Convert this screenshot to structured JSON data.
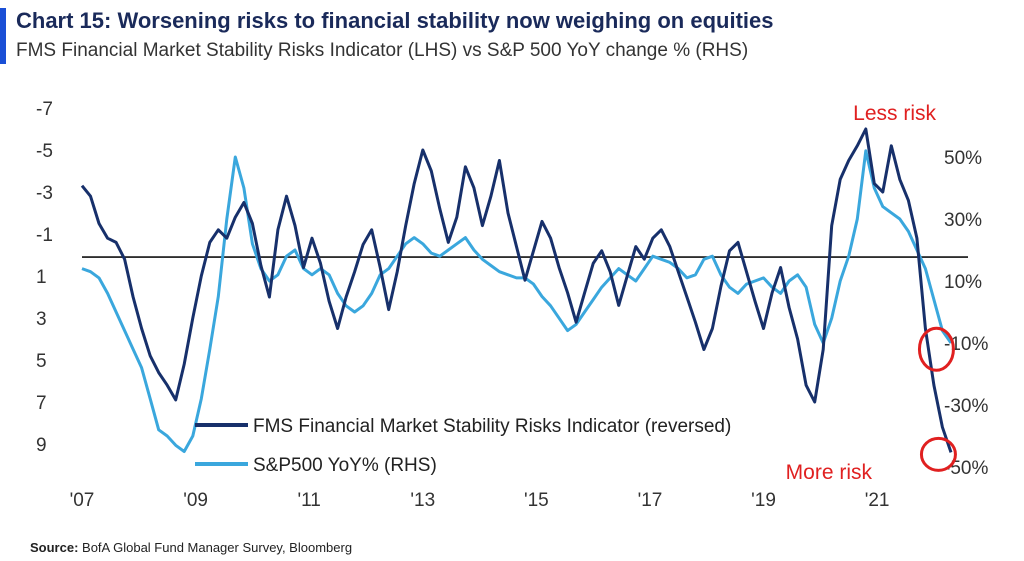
{
  "chart_data": {
    "type": "line",
    "title": "Chart 15: Worsening risks to financial stability now weighing on equities",
    "subtitle": "FMS Financial Market Stability Risks Indicator (LHS) vs S&P 500 YoY change % (RHS)",
    "source_label": "Source:",
    "source_text": "BofA Global Fund Manager Survey, Bloomberg",
    "x_ticks": [
      "'07",
      "'09",
      "'11",
      "'13",
      "'15",
      "'17",
      "'19",
      "'21"
    ],
    "x_tick_years": [
      2007,
      2009,
      2011,
      2013,
      2015,
      2017,
      2019,
      2021
    ],
    "xlim": [
      2007,
      2022.6
    ],
    "left_axis": {
      "ylim": [
        -7,
        10
      ],
      "reversed": true,
      "ticks": [
        -7,
        -5,
        -3,
        -1,
        1,
        3,
        5,
        7,
        9
      ],
      "tick_labels": [
        "-7",
        "-5",
        "-3",
        "-1",
        "1",
        "3",
        "5",
        "7",
        "9"
      ]
    },
    "right_axis": {
      "ylim": [
        -53,
        70
      ],
      "ticks": [
        50,
        30,
        10,
        -10,
        -30,
        -50
      ],
      "tick_labels": [
        "50%",
        "30%",
        "10%",
        "-10%",
        "-30%",
        "-50%"
      ]
    },
    "reference_line": {
      "axis": "left",
      "value": 0.1
    },
    "legend_position": "bottom-left",
    "annotations": [
      {
        "text": "Less risk",
        "color": "#e02020"
      },
      {
        "text": "More risk",
        "color": "#e02020"
      }
    ],
    "highlight_circles": [
      {
        "x": 2022.15,
        "y_right": -12,
        "axis": "right"
      },
      {
        "x": 2022.15,
        "y_left": 9.4,
        "axis": "left"
      }
    ],
    "series": [
      {
        "name": "FMS Financial Market Stability Risks Indicator (reversed)",
        "axis": "left",
        "color": "#17306b",
        "x": [
          2007.0,
          2007.15,
          2007.3,
          2007.45,
          2007.6,
          2007.75,
          2007.9,
          2008.05,
          2008.2,
          2008.35,
          2008.5,
          2008.65,
          2008.8,
          2008.95,
          2009.1,
          2009.25,
          2009.4,
          2009.55,
          2009.7,
          2009.85,
          2010.0,
          2010.15,
          2010.3,
          2010.45,
          2010.6,
          2010.75,
          2010.9,
          2011.05,
          2011.2,
          2011.35,
          2011.5,
          2011.65,
          2011.8,
          2011.95,
          2012.1,
          2012.25,
          2012.4,
          2012.55,
          2012.7,
          2012.85,
          2013.0,
          2013.15,
          2013.3,
          2013.45,
          2013.6,
          2013.75,
          2013.9,
          2014.05,
          2014.2,
          2014.35,
          2014.5,
          2014.65,
          2014.8,
          2014.95,
          2015.1,
          2015.25,
          2015.4,
          2015.55,
          2015.7,
          2015.85,
          2016.0,
          2016.15,
          2016.3,
          2016.45,
          2016.6,
          2016.75,
          2016.9,
          2017.05,
          2017.2,
          2017.35,
          2017.5,
          2017.65,
          2017.8,
          2017.95,
          2018.1,
          2018.25,
          2018.4,
          2018.55,
          2018.7,
          2018.85,
          2019.0,
          2019.15,
          2019.3,
          2019.45,
          2019.6,
          2019.75,
          2019.9,
          2020.05,
          2020.2,
          2020.35,
          2020.5,
          2020.65,
          2020.8,
          2020.95,
          2021.1,
          2021.25,
          2021.4,
          2021.55,
          2021.7,
          2021.85,
          2022.0,
          2022.15,
          2022.3
        ],
        "y": [
          -3.3,
          -2.8,
          -1.5,
          -0.8,
          -0.6,
          0.2,
          2.0,
          3.5,
          4.8,
          5.6,
          6.2,
          6.9,
          5.2,
          3.0,
          1.0,
          -0.6,
          -1.2,
          -0.8,
          -1.8,
          -2.5,
          -1.5,
          0.5,
          2.0,
          -1.2,
          -2.8,
          -1.4,
          0.6,
          -0.8,
          0.4,
          2.2,
          3.5,
          2.0,
          0.8,
          -0.5,
          -1.2,
          0.6,
          2.6,
          0.8,
          -1.4,
          -3.4,
          -5.0,
          -4.0,
          -2.2,
          -0.6,
          -1.8,
          -4.2,
          -3.2,
          -1.4,
          -2.8,
          -4.5,
          -2.0,
          -0.4,
          1.2,
          -0.2,
          -1.6,
          -0.8,
          0.6,
          1.8,
          3.2,
          1.8,
          0.4,
          -0.2,
          0.8,
          2.4,
          1.0,
          -0.4,
          0.2,
          -0.8,
          -1.2,
          -0.4,
          0.8,
          2.0,
          3.2,
          4.5,
          3.5,
          1.5,
          -0.2,
          -0.6,
          0.8,
          2.2,
          3.5,
          1.8,
          0.6,
          2.5,
          4.0,
          6.2,
          7.0,
          4.5,
          -1.4,
          -3.6,
          -4.5,
          -5.2,
          -6.0,
          -3.4,
          -3.0,
          -5.2,
          -3.6,
          -2.6,
          -0.8,
          3.5,
          6.2,
          8.2,
          9.4
        ]
      },
      {
        "name": "S&P500 YoY% (RHS)",
        "axis": "right",
        "color": "#3aa7dd",
        "x": [
          2007.0,
          2007.15,
          2007.3,
          2007.45,
          2007.6,
          2007.75,
          2007.9,
          2008.05,
          2008.2,
          2008.35,
          2008.5,
          2008.65,
          2008.8,
          2008.95,
          2009.1,
          2009.25,
          2009.4,
          2009.55,
          2009.7,
          2009.85,
          2010.0,
          2010.15,
          2010.3,
          2010.45,
          2010.6,
          2010.75,
          2010.9,
          2011.05,
          2011.2,
          2011.35,
          2011.5,
          2011.65,
          2011.8,
          2011.95,
          2012.1,
          2012.25,
          2012.4,
          2012.55,
          2012.7,
          2012.85,
          2013.0,
          2013.15,
          2013.3,
          2013.45,
          2013.6,
          2013.75,
          2013.9,
          2014.05,
          2014.2,
          2014.35,
          2014.5,
          2014.65,
          2014.8,
          2014.95,
          2015.1,
          2015.25,
          2015.4,
          2015.55,
          2015.7,
          2015.85,
          2016.0,
          2016.15,
          2016.3,
          2016.45,
          2016.6,
          2016.75,
          2016.9,
          2017.05,
          2017.2,
          2017.35,
          2017.5,
          2017.65,
          2017.8,
          2017.95,
          2018.1,
          2018.25,
          2018.4,
          2018.55,
          2018.7,
          2018.85,
          2019.0,
          2019.15,
          2019.3,
          2019.45,
          2019.6,
          2019.75,
          2019.9,
          2020.05,
          2020.2,
          2020.35,
          2020.5,
          2020.65,
          2020.8,
          2020.95,
          2021.1,
          2021.25,
          2021.4,
          2021.55,
          2021.7,
          2021.85,
          2022.0,
          2022.15,
          2022.3
        ],
        "y": [
          14,
          13,
          11,
          6,
          0,
          -6,
          -12,
          -18,
          -28,
          -38,
          -40,
          -43,
          -45,
          -40,
          -28,
          -12,
          5,
          30,
          50,
          40,
          22,
          14,
          10,
          12,
          18,
          20,
          14,
          12,
          14,
          12,
          6,
          2,
          0,
          2,
          6,
          12,
          14,
          18,
          22,
          24,
          22,
          19,
          18,
          20,
          22,
          24,
          20,
          17,
          15,
          13,
          12,
          11,
          11,
          9,
          5,
          2,
          -2,
          -6,
          -4,
          0,
          4,
          8,
          11,
          14,
          12,
          10,
          14,
          18,
          17,
          16,
          14,
          11,
          12,
          17,
          18,
          12,
          8,
          6,
          9,
          10,
          11,
          8,
          6,
          10,
          12,
          8,
          -4,
          -10,
          -2,
          10,
          18,
          30,
          52,
          40,
          34,
          32,
          30,
          26,
          20,
          14,
          4,
          -6,
          -10
        ]
      }
    ]
  }
}
